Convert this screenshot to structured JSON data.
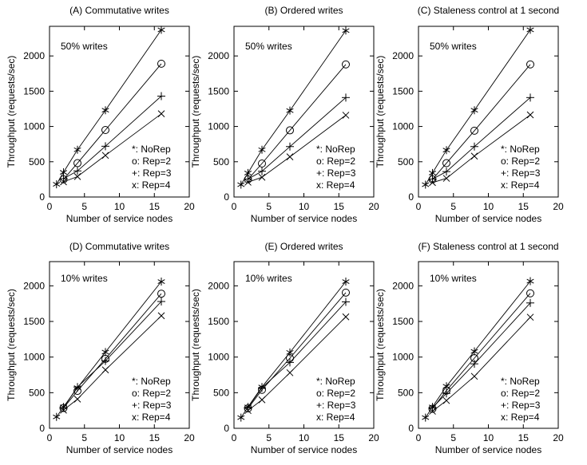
{
  "figure": {
    "background": "#ffffff",
    "ink": "#000000",
    "description": "2x3 grid of scalability line plots"
  },
  "chart_data": [
    {
      "id": "A",
      "type": "line",
      "title": "(A) Commutative writes",
      "annotation": "50% writes",
      "xlabel": "Number of service nodes",
      "ylabel": "Throughput (requests/sec)",
      "xlim": [
        0,
        20
      ],
      "ylim": [
        0,
        2420
      ],
      "xticks": [
        0,
        5,
        10,
        15,
        20
      ],
      "yticks": [
        0,
        500,
        1000,
        1500,
        2000
      ],
      "grid": false,
      "legend_position": "lower-right-inside",
      "legend": [
        "*: NoRep",
        "o: Rep=2",
        "+: Rep=3",
        "x: Rep=4"
      ],
      "series": [
        {
          "name": "NoRep",
          "marker": "star",
          "x": [
            1,
            2,
            4,
            8,
            16
          ],
          "y": [
            180,
            350,
            670,
            1230,
            2370
          ]
        },
        {
          "name": "Rep=2",
          "marker": "circle",
          "x": [
            2,
            4,
            8,
            16
          ],
          "y": [
            250,
            480,
            950,
            1890
          ]
        },
        {
          "name": "Rep=3",
          "marker": "plus",
          "x": [
            2,
            4,
            8,
            16
          ],
          "y": [
            260,
            370,
            720,
            1430
          ]
        },
        {
          "name": "Rep=4",
          "marker": "cross",
          "x": [
            2,
            4,
            8,
            16
          ],
          "y": [
            215,
            290,
            590,
            1180
          ]
        }
      ]
    },
    {
      "id": "B",
      "type": "line",
      "title": "(B) Ordered writes",
      "annotation": "50% writes",
      "xlabel": "Number of service nodes",
      "ylabel": "Throughput (requests/sec)",
      "xlim": [
        0,
        20
      ],
      "ylim": [
        0,
        2420
      ],
      "xticks": [
        0,
        5,
        10,
        15,
        20
      ],
      "yticks": [
        0,
        500,
        1000,
        1500,
        2000
      ],
      "grid": false,
      "legend_position": "lower-right-inside",
      "legend": [
        "*: NoRep",
        "o: Rep=2",
        "+: Rep=3",
        "x: Rep=4"
      ],
      "series": [
        {
          "name": "NoRep",
          "marker": "star",
          "x": [
            1,
            2,
            4,
            8,
            16
          ],
          "y": [
            175,
            340,
            670,
            1225,
            2360
          ]
        },
        {
          "name": "Rep=2",
          "marker": "circle",
          "x": [
            2,
            4,
            8,
            16
          ],
          "y": [
            250,
            475,
            945,
            1880
          ]
        },
        {
          "name": "Rep=3",
          "marker": "plus",
          "x": [
            2,
            4,
            8,
            16
          ],
          "y": [
            255,
            365,
            715,
            1410
          ]
        },
        {
          "name": "Rep=4",
          "marker": "cross",
          "x": [
            2,
            4,
            8,
            16
          ],
          "y": [
            210,
            280,
            570,
            1160
          ]
        }
      ]
    },
    {
      "id": "C",
      "type": "line",
      "title": "(C) Staleness control at 1 second",
      "annotation": "50% writes",
      "xlabel": "Number of service nodes",
      "ylabel": "Throughput (requests/sec)",
      "xlim": [
        0,
        20
      ],
      "ylim": [
        0,
        2420
      ],
      "xticks": [
        0,
        5,
        10,
        15,
        20
      ],
      "yticks": [
        0,
        500,
        1000,
        1500,
        2000
      ],
      "grid": false,
      "legend_position": "lower-right-inside",
      "legend": [
        "*: NoRep",
        "o: Rep=2",
        "+: Rep=3",
        "x: Rep=4"
      ],
      "series": [
        {
          "name": "NoRep",
          "marker": "star",
          "x": [
            1,
            2,
            4,
            8,
            16
          ],
          "y": [
            175,
            340,
            665,
            1230,
            2370
          ]
        },
        {
          "name": "Rep=2",
          "marker": "circle",
          "x": [
            2,
            4,
            8,
            16
          ],
          "y": [
            250,
            480,
            940,
            1880
          ]
        },
        {
          "name": "Rep=3",
          "marker": "plus",
          "x": [
            2,
            4,
            8,
            16
          ],
          "y": [
            255,
            360,
            715,
            1410
          ]
        },
        {
          "name": "Rep=4",
          "marker": "cross",
          "x": [
            2,
            4,
            8,
            16
          ],
          "y": [
            205,
            265,
            580,
            1165
          ]
        }
      ]
    },
    {
      "id": "D",
      "type": "line",
      "title": "(D) Commutative writes",
      "annotation": "10% writes",
      "xlabel": "Number of service nodes",
      "ylabel": "Throughput (requests/sec)",
      "xlim": [
        0,
        20
      ],
      "ylim": [
        0,
        2340
      ],
      "xticks": [
        0,
        5,
        10,
        15,
        20
      ],
      "yticks": [
        0,
        500,
        1000,
        1500,
        2000
      ],
      "grid": false,
      "legend_position": "lower-right-inside",
      "legend": [
        "*: NoRep",
        "o: Rep=2",
        "+: Rep=3",
        "x: Rep=4"
      ],
      "series": [
        {
          "name": "NoRep",
          "marker": "star",
          "x": [
            1,
            2,
            4,
            8,
            16
          ],
          "y": [
            160,
            300,
            570,
            1070,
            2060
          ]
        },
        {
          "name": "Rep=2",
          "marker": "circle",
          "x": [
            2,
            4,
            8,
            16
          ],
          "y": [
            285,
            525,
            975,
            1890
          ]
        },
        {
          "name": "Rep=3",
          "marker": "plus",
          "x": [
            2,
            4,
            8,
            16
          ],
          "y": [
            290,
            580,
            945,
            1780
          ]
        },
        {
          "name": "Rep=4",
          "marker": "cross",
          "x": [
            2,
            4,
            8,
            16
          ],
          "y": [
            255,
            410,
            820,
            1580
          ]
        }
      ]
    },
    {
      "id": "E",
      "type": "line",
      "title": "(E) Ordered writes",
      "annotation": "10% writes",
      "xlabel": "Number of service nodes",
      "ylabel": "Throughput (requests/sec)",
      "xlim": [
        0,
        20
      ],
      "ylim": [
        0,
        2340
      ],
      "xticks": [
        0,
        5,
        10,
        15,
        20
      ],
      "yticks": [
        0,
        500,
        1000,
        1500,
        2000
      ],
      "grid": false,
      "legend_position": "lower-right-inside",
      "legend": [
        "*: NoRep",
        "o: Rep=2",
        "+: Rep=3",
        "x: Rep=4"
      ],
      "series": [
        {
          "name": "NoRep",
          "marker": "star",
          "x": [
            1,
            2,
            4,
            8,
            16
          ],
          "y": [
            150,
            300,
            580,
            1065,
            2060
          ]
        },
        {
          "name": "Rep=2",
          "marker": "circle",
          "x": [
            2,
            4,
            8,
            16
          ],
          "y": [
            280,
            540,
            985,
            1905
          ]
        },
        {
          "name": "Rep=3",
          "marker": "plus",
          "x": [
            2,
            4,
            8,
            16
          ],
          "y": [
            295,
            570,
            925,
            1775
          ]
        },
        {
          "name": "Rep=4",
          "marker": "cross",
          "x": [
            2,
            4,
            8,
            16
          ],
          "y": [
            250,
            400,
            780,
            1565
          ]
        }
      ]
    },
    {
      "id": "F",
      "type": "line",
      "title": "(F) Staleness control at 1 second",
      "annotation": "10% writes",
      "xlabel": "Number of service nodes",
      "ylabel": "Throughput (requests/sec)",
      "xlim": [
        0,
        20
      ],
      "ylim": [
        0,
        2340
      ],
      "xticks": [
        0,
        5,
        10,
        15,
        20
      ],
      "yticks": [
        0,
        500,
        1000,
        1500,
        2000
      ],
      "grid": false,
      "legend_position": "lower-right-inside",
      "legend": [
        "*: NoRep",
        "o: Rep=2",
        "+: Rep=3",
        "x: Rep=4"
      ],
      "series": [
        {
          "name": "NoRep",
          "marker": "star",
          "x": [
            1,
            2,
            4,
            8,
            16
          ],
          "y": [
            150,
            300,
            590,
            1080,
            2065
          ]
        },
        {
          "name": "Rep=2",
          "marker": "circle",
          "x": [
            2,
            4,
            8,
            16
          ],
          "y": [
            275,
            530,
            985,
            1895
          ]
        },
        {
          "name": "Rep=3",
          "marker": "plus",
          "x": [
            2,
            4,
            8,
            16
          ],
          "y": [
            290,
            490,
            905,
            1760
          ]
        },
        {
          "name": "Rep=4",
          "marker": "cross",
          "x": [
            2,
            4,
            8,
            16
          ],
          "y": [
            240,
            390,
            730,
            1560
          ]
        }
      ]
    }
  ]
}
